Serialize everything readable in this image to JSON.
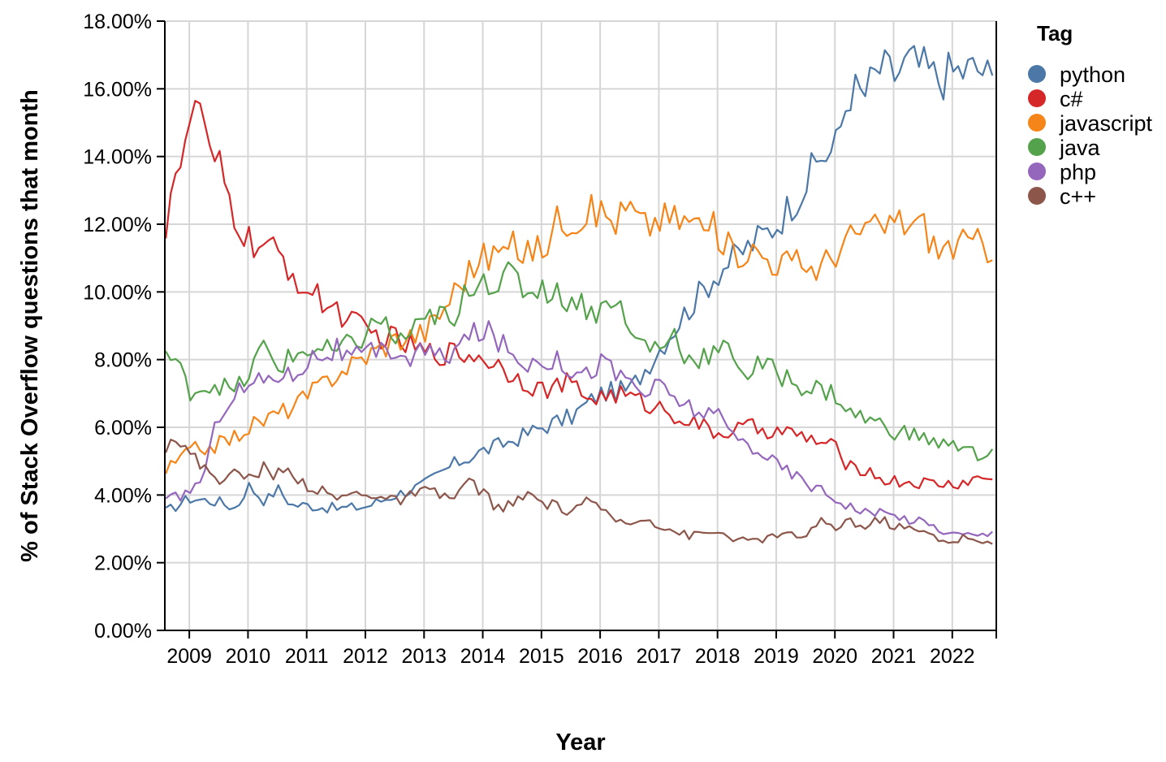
{
  "chart_data": {
    "type": "line",
    "xlabel": "Year",
    "ylabel": "% of Stack Overflow questions that month",
    "x_domain": [
      "2008-08",
      "2022-09"
    ],
    "y_domain": [
      0,
      18
    ],
    "x_tick_labels": [
      "2009",
      "2010",
      "2011",
      "2012",
      "2013",
      "2014",
      "2015",
      "2016",
      "2017",
      "2018",
      "2019",
      "2020",
      "2021",
      "2022"
    ],
    "y_tick_labels": [
      "0.00%",
      "2.00%",
      "4.00%",
      "6.00%",
      "8.00%",
      "10.00%",
      "12.00%",
      "14.00%",
      "16.00%",
      "18.00%"
    ],
    "grid": true,
    "legend": {
      "title": "Tag",
      "position": "right"
    },
    "series": [
      {
        "name": "python",
        "color": "#4c78a8",
        "values": [
          [
            2008.6,
            3.5
          ],
          [
            2009.0,
            3.9
          ],
          [
            2009.5,
            3.8
          ],
          [
            2009.8,
            3.6
          ],
          [
            2010.0,
            4.3
          ],
          [
            2010.3,
            3.8
          ],
          [
            2010.5,
            4.2
          ],
          [
            2010.75,
            3.7
          ],
          [
            2011.0,
            3.7
          ],
          [
            2011.5,
            3.6
          ],
          [
            2012.0,
            3.65
          ],
          [
            2012.5,
            4.0
          ],
          [
            2013.0,
            4.3
          ],
          [
            2013.5,
            4.9
          ],
          [
            2014.0,
            5.3
          ],
          [
            2014.5,
            5.6
          ],
          [
            2015.0,
            6.0
          ],
          [
            2015.5,
            6.3
          ],
          [
            2016.0,
            7.0
          ],
          [
            2016.5,
            7.1
          ],
          [
            2017.0,
            8.3
          ],
          [
            2017.25,
            8.9
          ],
          [
            2017.5,
            9.5
          ],
          [
            2018.0,
            10.6
          ],
          [
            2018.5,
            11.3
          ],
          [
            2019.0,
            12.0
          ],
          [
            2019.5,
            13.2
          ],
          [
            2019.75,
            14.0
          ],
          [
            2020.0,
            14.2
          ],
          [
            2020.25,
            16.0
          ],
          [
            2020.5,
            15.8
          ],
          [
            2020.75,
            16.6
          ],
          [
            2021.0,
            16.4
          ],
          [
            2021.25,
            16.8
          ],
          [
            2021.5,
            16.6
          ],
          [
            2021.75,
            16.3
          ],
          [
            2022.0,
            16.5
          ],
          [
            2022.5,
            16.6
          ],
          [
            2022.7,
            16.1
          ]
        ]
      },
      {
        "name": "c#",
        "color": "#d62728",
        "values": [
          [
            2008.6,
            12.0
          ],
          [
            2008.75,
            13.8
          ],
          [
            2008.9,
            13.5
          ],
          [
            2009.0,
            15.1
          ],
          [
            2009.2,
            15.7
          ],
          [
            2009.3,
            13.9
          ],
          [
            2009.5,
            13.7
          ],
          [
            2009.75,
            12.3
          ],
          [
            2010.0,
            11.5
          ],
          [
            2010.5,
            11.1
          ],
          [
            2010.75,
            10.6
          ],
          [
            2011.0,
            10.0
          ],
          [
            2011.5,
            9.5
          ],
          [
            2012.0,
            8.8
          ],
          [
            2012.5,
            8.6
          ],
          [
            2013.0,
            8.2
          ],
          [
            2013.5,
            8.2
          ],
          [
            2014.0,
            8.1
          ],
          [
            2014.5,
            7.6
          ],
          [
            2015.0,
            7.1
          ],
          [
            2015.5,
            7.3
          ],
          [
            2015.75,
            6.9
          ],
          [
            2016.0,
            6.9
          ],
          [
            2016.25,
            7.0
          ],
          [
            2016.5,
            6.9
          ],
          [
            2016.75,
            6.7
          ],
          [
            2017.0,
            6.6
          ],
          [
            2017.5,
            6.2
          ],
          [
            2018.0,
            5.8
          ],
          [
            2018.5,
            6.0
          ],
          [
            2019.0,
            5.9
          ],
          [
            2019.5,
            5.7
          ],
          [
            2020.0,
            5.4
          ],
          [
            2020.25,
            4.8
          ],
          [
            2020.5,
            4.8
          ],
          [
            2020.75,
            4.5
          ],
          [
            2021.0,
            4.4
          ],
          [
            2021.5,
            4.35
          ],
          [
            2022.0,
            4.3
          ],
          [
            2022.5,
            4.5
          ],
          [
            2022.7,
            4.5
          ]
        ]
      },
      {
        "name": "javascript",
        "color": "#f58518",
        "values": [
          [
            2008.6,
            4.7
          ],
          [
            2009.0,
            5.3
          ],
          [
            2009.5,
            5.5
          ],
          [
            2009.75,
            5.7
          ],
          [
            2010.0,
            6.0
          ],
          [
            2010.5,
            6.4
          ],
          [
            2010.75,
            6.6
          ],
          [
            2011.0,
            6.9
          ],
          [
            2011.5,
            7.6
          ],
          [
            2012.0,
            8.1
          ],
          [
            2012.5,
            8.6
          ],
          [
            2012.75,
            8.7
          ],
          [
            2013.0,
            8.8
          ],
          [
            2013.25,
            9.3
          ],
          [
            2013.5,
            10.0
          ],
          [
            2013.75,
            10.6
          ],
          [
            2014.0,
            11.0
          ],
          [
            2014.5,
            11.3
          ],
          [
            2015.0,
            11.2
          ],
          [
            2015.25,
            12.1
          ],
          [
            2015.5,
            12.2
          ],
          [
            2016.0,
            12.4
          ],
          [
            2016.25,
            12.1
          ],
          [
            2016.5,
            12.5
          ],
          [
            2016.75,
            11.9
          ],
          [
            2017.0,
            12.2
          ],
          [
            2017.5,
            12.1
          ],
          [
            2018.0,
            11.8
          ],
          [
            2018.25,
            11.1
          ],
          [
            2018.5,
            11.3
          ],
          [
            2019.0,
            10.9
          ],
          [
            2019.5,
            10.8
          ],
          [
            2019.75,
            10.7
          ],
          [
            2020.0,
            11.2
          ],
          [
            2020.5,
            11.9
          ],
          [
            2020.75,
            11.8
          ],
          [
            2021.0,
            12.1
          ],
          [
            2021.5,
            12.0
          ],
          [
            2021.75,
            11.2
          ],
          [
            2022.0,
            11.4
          ],
          [
            2022.5,
            11.4
          ],
          [
            2022.7,
            11.3
          ]
        ]
      },
      {
        "name": "java",
        "color": "#54a24b",
        "values": [
          [
            2008.6,
            8.2
          ],
          [
            2008.8,
            7.8
          ],
          [
            2009.0,
            7.1
          ],
          [
            2009.5,
            7.3
          ],
          [
            2009.75,
            7.0
          ],
          [
            2010.0,
            7.5
          ],
          [
            2010.25,
            8.4
          ],
          [
            2010.5,
            7.8
          ],
          [
            2011.0,
            8.3
          ],
          [
            2011.5,
            8.2
          ],
          [
            2012.0,
            8.7
          ],
          [
            2012.25,
            9.3
          ],
          [
            2012.5,
            8.5
          ],
          [
            2013.0,
            9.0
          ],
          [
            2013.25,
            9.5
          ],
          [
            2013.5,
            8.8
          ],
          [
            2013.75,
            10.2
          ],
          [
            2014.0,
            10.5
          ],
          [
            2014.25,
            10.2
          ],
          [
            2014.5,
            10.5
          ],
          [
            2014.75,
            10.0
          ],
          [
            2015.0,
            10.2
          ],
          [
            2015.25,
            9.9
          ],
          [
            2015.5,
            9.8
          ],
          [
            2016.0,
            9.4
          ],
          [
            2016.25,
            10.0
          ],
          [
            2016.5,
            8.7
          ],
          [
            2016.75,
            8.5
          ],
          [
            2017.0,
            8.3
          ],
          [
            2017.25,
            8.8
          ],
          [
            2017.5,
            8.0
          ],
          [
            2018.0,
            8.2
          ],
          [
            2018.25,
            8.3
          ],
          [
            2018.5,
            7.5
          ],
          [
            2018.75,
            7.9
          ],
          [
            2019.0,
            7.6
          ],
          [
            2019.5,
            7.2
          ],
          [
            2019.75,
            7.1
          ],
          [
            2020.0,
            7.0
          ],
          [
            2020.25,
            6.4
          ],
          [
            2020.5,
            6.3
          ],
          [
            2021.0,
            5.9
          ],
          [
            2021.5,
            5.7
          ],
          [
            2022.0,
            5.4
          ],
          [
            2022.25,
            5.6
          ],
          [
            2022.5,
            5.0
          ],
          [
            2022.7,
            5.2
          ]
        ]
      },
      {
        "name": "php",
        "color": "#9467bd",
        "values": [
          [
            2008.6,
            3.8
          ],
          [
            2009.0,
            4.1
          ],
          [
            2009.25,
            4.6
          ],
          [
            2009.5,
            6.4
          ],
          [
            2009.75,
            7.0
          ],
          [
            2010.0,
            7.2
          ],
          [
            2010.5,
            7.6
          ],
          [
            2010.75,
            7.5
          ],
          [
            2011.0,
            8.0
          ],
          [
            2011.5,
            8.3
          ],
          [
            2011.75,
            8.0
          ],
          [
            2012.0,
            8.1
          ],
          [
            2012.5,
            8.3
          ],
          [
            2012.75,
            8.0
          ],
          [
            2013.0,
            8.3
          ],
          [
            2013.25,
            8.0
          ],
          [
            2013.5,
            8.3
          ],
          [
            2013.75,
            8.6
          ],
          [
            2014.0,
            8.9
          ],
          [
            2014.25,
            8.6
          ],
          [
            2014.5,
            8.1
          ],
          [
            2014.75,
            7.9
          ],
          [
            2015.0,
            8.1
          ],
          [
            2015.5,
            7.8
          ],
          [
            2015.75,
            7.5
          ],
          [
            2016.0,
            8.0
          ],
          [
            2016.25,
            7.6
          ],
          [
            2016.5,
            7.4
          ],
          [
            2016.75,
            7.0
          ],
          [
            2017.0,
            7.2
          ],
          [
            2017.5,
            6.6
          ],
          [
            2018.0,
            6.3
          ],
          [
            2018.25,
            5.8
          ],
          [
            2018.5,
            5.5
          ],
          [
            2018.75,
            5.3
          ],
          [
            2019.0,
            4.9
          ],
          [
            2019.5,
            4.4
          ],
          [
            2020.0,
            3.9
          ],
          [
            2020.5,
            3.5
          ],
          [
            2021.0,
            3.4
          ],
          [
            2021.5,
            3.2
          ],
          [
            2022.0,
            2.85
          ],
          [
            2022.5,
            2.8
          ],
          [
            2022.7,
            2.9
          ]
        ]
      },
      {
        "name": "c++",
        "color": "#8c564b",
        "values": [
          [
            2008.6,
            5.5
          ],
          [
            2008.75,
            5.8
          ],
          [
            2009.0,
            5.2
          ],
          [
            2009.25,
            4.8
          ],
          [
            2009.5,
            4.5
          ],
          [
            2009.75,
            4.6
          ],
          [
            2010.0,
            4.5
          ],
          [
            2010.25,
            4.8
          ],
          [
            2010.5,
            4.6
          ],
          [
            2010.75,
            4.7
          ],
          [
            2011.0,
            4.3
          ],
          [
            2011.5,
            3.9
          ],
          [
            2012.0,
            4.1
          ],
          [
            2012.5,
            3.8
          ],
          [
            2013.0,
            4.1
          ],
          [
            2013.5,
            3.9
          ],
          [
            2013.75,
            4.4
          ],
          [
            2014.0,
            4.1
          ],
          [
            2014.25,
            3.6
          ],
          [
            2014.5,
            3.7
          ],
          [
            2014.75,
            4.0
          ],
          [
            2015.0,
            3.8
          ],
          [
            2015.5,
            3.5
          ],
          [
            2015.75,
            3.9
          ],
          [
            2016.0,
            3.5
          ],
          [
            2016.5,
            3.1
          ],
          [
            2016.75,
            3.4
          ],
          [
            2017.0,
            3.1
          ],
          [
            2017.5,
            2.8
          ],
          [
            2018.0,
            2.9
          ],
          [
            2018.5,
            2.6
          ],
          [
            2019.0,
            2.8
          ],
          [
            2019.5,
            2.8
          ],
          [
            2019.75,
            3.2
          ],
          [
            2020.0,
            3.0
          ],
          [
            2020.25,
            3.3
          ],
          [
            2020.5,
            3.0
          ],
          [
            2020.75,
            3.3
          ],
          [
            2021.0,
            3.1
          ],
          [
            2021.5,
            2.9
          ],
          [
            2022.0,
            2.6
          ],
          [
            2022.25,
            2.8
          ],
          [
            2022.5,
            2.5
          ],
          [
            2022.7,
            2.6
          ]
        ]
      }
    ]
  }
}
